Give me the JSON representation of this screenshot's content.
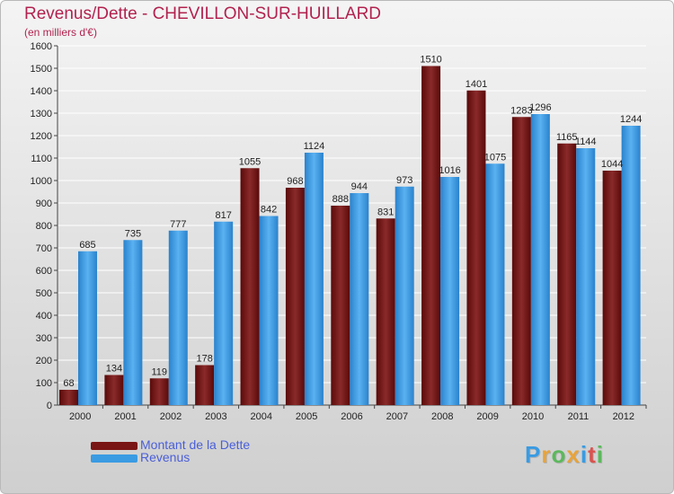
{
  "chart_data": {
    "type": "bar",
    "title": "Revenus/Dette - CHEVILLON-SUR-HUILLARD",
    "subtitle": "(en milliers d'€)",
    "categories": [
      "2000",
      "2001",
      "2002",
      "2003",
      "2004",
      "2005",
      "2006",
      "2007",
      "2008",
      "2009",
      "2010",
      "2011",
      "2012"
    ],
    "series": [
      {
        "name": "Montant de la Dette",
        "color": "#7a1515",
        "values": [
          68,
          134,
          119,
          178,
          1055,
          968,
          888,
          831,
          1510,
          1401,
          1283,
          1165,
          1044
        ]
      },
      {
        "name": "Revenus",
        "color": "#3a9be2",
        "values": [
          685,
          735,
          777,
          817,
          842,
          1124,
          944,
          973,
          1016,
          1075,
          1296,
          1144,
          1244
        ]
      }
    ],
    "ylim": [
      0,
      1600
    ],
    "yticks": [
      0,
      100,
      200,
      300,
      400,
      500,
      600,
      700,
      800,
      900,
      1000,
      1100,
      1200,
      1300,
      1400,
      1500,
      1600
    ],
    "grid": true,
    "legend_position": "bottom-left"
  },
  "logo": {
    "text": "Proxiti",
    "colors": [
      "#3a9be2",
      "#e8a33a",
      "#5cb85c",
      "#e8a33a",
      "#3a9be2",
      "#d9534f",
      "#5cb85c"
    ]
  }
}
